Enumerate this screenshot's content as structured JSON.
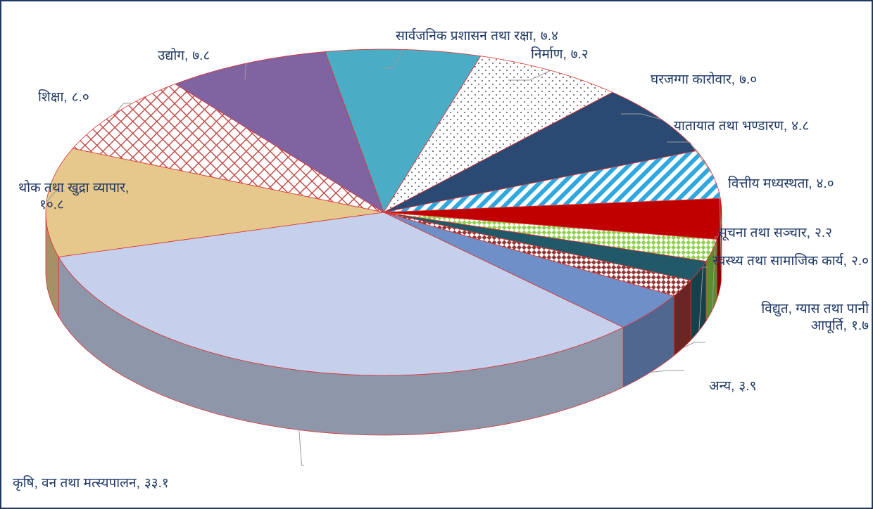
{
  "chart_data": {
    "type": "pie3d",
    "categories": [
      "सार्वजनिक प्रशासन तथा रक्षा,",
      "निर्माण,",
      "घरजग्गा कारोवार,",
      "यातायात तथा भण्डारण,",
      "वित्तीय मध्यस्थता,",
      "सूचना तथा सञ्चार,",
      "स्वस्थ्य तथा सामाजिक कार्य,",
      "विद्युत, ग्यास तथा पानी आपूर्ति,",
      "अन्य,",
      "कृषि, वन तथा मत्स्यपालन,",
      "थोक तथा खुद्रा व्यापार,",
      "शिक्षा,",
      "उद्योग,"
    ],
    "values": [
      7.4,
      7.2,
      7.0,
      4.8,
      4.0,
      2.2,
      2.0,
      1.7,
      3.9,
      33.1,
      10.8,
      8.0,
      7.8
    ],
    "value_labels": [
      "७.४",
      "७.२",
      "७.०",
      "४.८",
      "४.०",
      "२.२",
      "२.०",
      "१.७",
      "३.९",
      "३३.१",
      "१०.८",
      "८.०",
      "७.८"
    ],
    "colors": [
      "#4bacc6",
      "#ffffff",
      "#2a4a74",
      "#ffffff",
      "#c00000",
      "#ffffff",
      "#215968",
      "#ffffff",
      "#6f8fc8",
      "#c5d0ec",
      "#e6c88c",
      "#ffffff",
      "#8064a2"
    ],
    "patterns": [
      null,
      "dots",
      null,
      "stripes",
      null,
      "green-check",
      null,
      "brown-check",
      null,
      null,
      null,
      "crosshatch",
      null
    ]
  }
}
